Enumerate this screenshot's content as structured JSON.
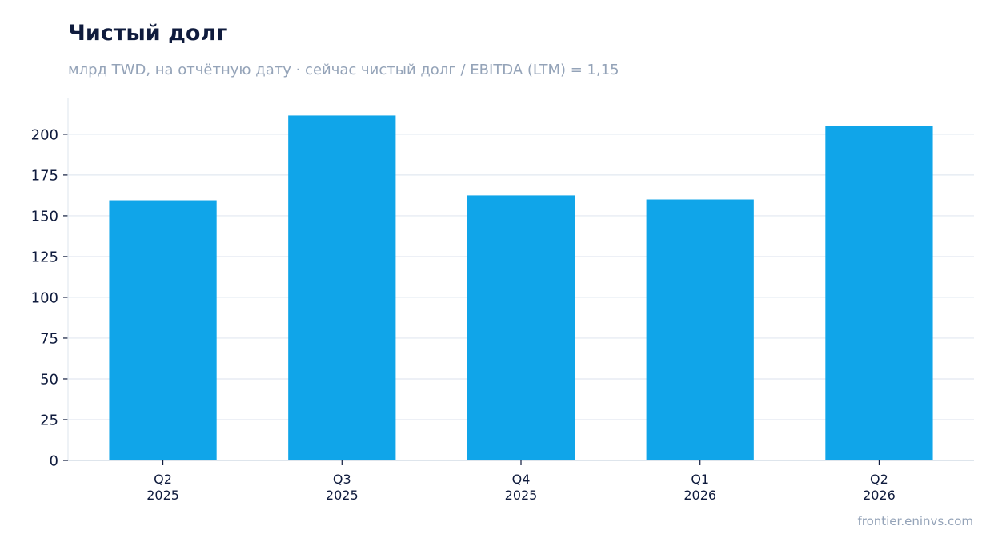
{
  "title": "Чистый долг",
  "subtitle": "млрд TWD, на отчётную дату · сейчас чистый долг / EBITDA (LTM) = 1,15",
  "source": "frontier.eninvs.com",
  "colors": {
    "bar": "#10a5e9",
    "grid": "#e2e8f0",
    "axis": "#cbd5e1",
    "text": "#0f1b3d",
    "muted": "#94a3b8"
  },
  "chart_data": {
    "type": "bar",
    "categories": [
      [
        "Q2",
        "2025"
      ],
      [
        "Q3",
        "2025"
      ],
      [
        "Q4",
        "2025"
      ],
      [
        "Q1",
        "2026"
      ],
      [
        "Q2",
        "2026"
      ]
    ],
    "values": [
      159.5,
      211.5,
      162.5,
      160,
      205
    ],
    "yticks": [
      0,
      25,
      50,
      75,
      100,
      125,
      150,
      175,
      200
    ],
    "ylim": [
      0,
      222
    ],
    "grid": true,
    "xlabel": "",
    "ylabel": ""
  }
}
